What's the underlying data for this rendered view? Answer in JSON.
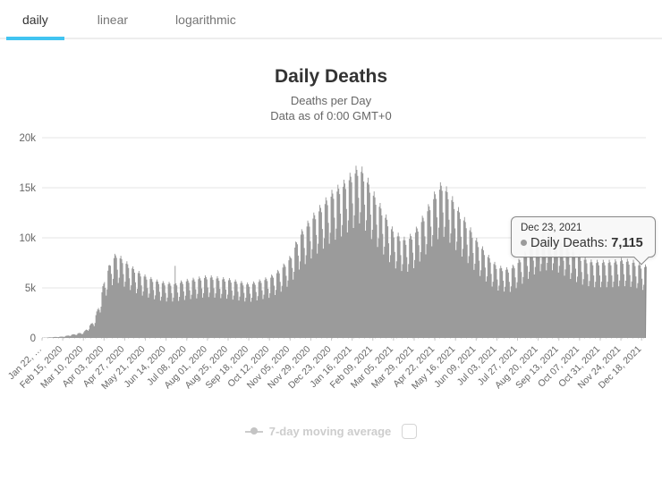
{
  "tabs": {
    "items": [
      {
        "label": "daily",
        "active": true
      },
      {
        "label": "linear",
        "active": false
      },
      {
        "label": "logarithmic",
        "active": false
      }
    ]
  },
  "header": {
    "title": "Daily Deaths",
    "subtitle_line1": "Deaths per Day",
    "subtitle_line2": "Data as of 0:00 GMT+0"
  },
  "tooltip": {
    "date": "Dec 23, 2021",
    "series_label": "Daily Deaths:",
    "value": "7,115"
  },
  "legend": {
    "label": "7-day moving average",
    "checked": false
  },
  "colors": {
    "accent": "#41c4f1",
    "bar": "#9b9b9b",
    "hover_bar": "#8a8a8a",
    "grid": "#e6e6e6",
    "axis_line": "#c9c9c9",
    "axis_label": "#666666"
  },
  "chart_data": {
    "type": "bar",
    "title": "Daily Deaths",
    "subtitle": "Deaths per Day — Data as of 0:00 GMT+0",
    "xlabel": "",
    "ylabel": "",
    "ylim": [
      0,
      20000
    ],
    "y_tick_labels": [
      "0",
      "5k",
      "10k",
      "15k",
      "20k"
    ],
    "y_tick_values": [
      0,
      5000,
      10000,
      15000,
      20000
    ],
    "grid": true,
    "legend_position": "bottom",
    "hidden_series": [
      "7-day moving average"
    ],
    "start_date": "Jan 22, 2020",
    "end_date": "Dec 23, 2021",
    "total_days": 702,
    "x_tick_interval_days": 24,
    "x_tick_labels": [
      "Jan 22, …",
      "Feb 15, 2020",
      "Mar 10, 2020",
      "Apr 03, 2020",
      "Apr 27, 2020",
      "May 21, 2020",
      "Jun 14, 2020",
      "Jul 08, 2020",
      "Aug 01, 2020",
      "Aug 25, 2020",
      "Sep 18, 2020",
      "Oct 12, 2020",
      "Nov 05, 2020",
      "Nov 29, 2020",
      "Dec 23, 2020",
      "Jan 16, 2021",
      "Feb 09, 2021",
      "Mar 05, 2021",
      "Mar 29, 2021",
      "Apr 22, 2021",
      "May 16, 2021",
      "Jun 09, 2021",
      "Jul 03, 2021",
      "Jul 27, 2021",
      "Aug 20, 2021",
      "Sep 13, 2021",
      "Oct 07, 2021",
      "Oct 31, 2021",
      "Nov 24, 2021",
      "Dec 18, 2021"
    ],
    "series_name": "Daily Deaths",
    "envelope_weekly_peaks": [
      [
        0,
        20
      ],
      [
        24,
        150
      ],
      [
        48,
        600
      ],
      [
        60,
        1800
      ],
      [
        66,
        3500
      ],
      [
        72,
        6000
      ],
      [
        80,
        8000
      ],
      [
        86,
        8600
      ],
      [
        96,
        7800
      ],
      [
        110,
        6800
      ],
      [
        120,
        6300
      ],
      [
        134,
        5800
      ],
      [
        144,
        5600
      ],
      [
        154,
        5600
      ],
      [
        168,
        5900
      ],
      [
        192,
        6300
      ],
      [
        216,
        6000
      ],
      [
        240,
        5500
      ],
      [
        264,
        6200
      ],
      [
        276,
        7000
      ],
      [
        288,
        8300
      ],
      [
        298,
        10500
      ],
      [
        312,
        12200
      ],
      [
        336,
        14800
      ],
      [
        350,
        15800
      ],
      [
        360,
        16800
      ],
      [
        368,
        17600
      ],
      [
        378,
        16000
      ],
      [
        384,
        14800
      ],
      [
        398,
        12500
      ],
      [
        408,
        10800
      ],
      [
        422,
        10000
      ],
      [
        432,
        10800
      ],
      [
        446,
        13000
      ],
      [
        456,
        14800
      ],
      [
        464,
        15800
      ],
      [
        474,
        14500
      ],
      [
        480,
        13500
      ],
      [
        494,
        11500
      ],
      [
        504,
        10000
      ],
      [
        518,
        8300
      ],
      [
        528,
        7300
      ],
      [
        542,
        7000
      ],
      [
        552,
        7800
      ],
      [
        566,
        9300
      ],
      [
        576,
        10200
      ],
      [
        590,
        10500
      ],
      [
        600,
        10000
      ],
      [
        614,
        9000
      ],
      [
        624,
        8300
      ],
      [
        638,
        7800
      ],
      [
        648,
        7800
      ],
      [
        662,
        7800
      ],
      [
        672,
        8000
      ],
      [
        686,
        7800
      ],
      [
        696,
        7400
      ],
      [
        701,
        7335
      ]
    ],
    "weekly_factors": [
      1.0,
      0.97,
      0.93,
      0.8,
      0.65,
      0.72,
      0.96
    ],
    "spikes": [
      [
        154,
        7200
      ]
    ],
    "highlighted_point": {
      "day": 701,
      "date": "Dec 23, 2021",
      "value": 7115
    }
  }
}
